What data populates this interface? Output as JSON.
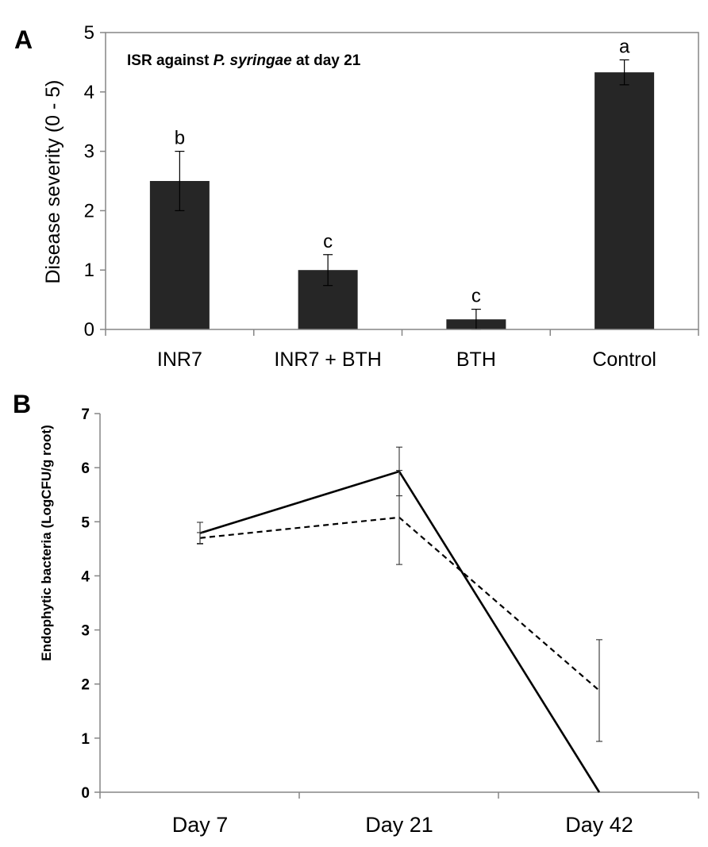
{
  "chart_data": [
    {
      "panel": "A",
      "type": "bar",
      "title_prefix": "ISR against ",
      "title_italic": "P. syringae",
      "title_suffix": " at day 21",
      "xlabel": "",
      "ylabel": "Disease severity (0 - 5)",
      "ylim": [
        0,
        5
      ],
      "yticks": [
        "0",
        "1",
        "2",
        "3",
        "4",
        "5"
      ],
      "categories": [
        "INR7",
        "INR7 + BTH",
        "BTH",
        "Control"
      ],
      "values": [
        2.5,
        1.0,
        0.17,
        4.33
      ],
      "errors": [
        0.5,
        0.26,
        0.17,
        0.21
      ],
      "significance": [
        "b",
        "c",
        "c",
        "a"
      ],
      "bar_color": "#262626",
      "legend": "none"
    },
    {
      "panel": "B",
      "type": "line",
      "xlabel": "",
      "ylabel": "Endophytic bacteria (LogCFU/g root)",
      "ylim": [
        0,
        7
      ],
      "yticks": [
        "0",
        "1",
        "2",
        "3",
        "4",
        "5",
        "6",
        "7"
      ],
      "categories": [
        "Day 7",
        "Day 21",
        "Day 42"
      ],
      "series": [
        {
          "name": "solid",
          "style": "solid",
          "values": [
            4.79,
            5.93,
            0.0
          ],
          "errors": [
            0.2,
            0.45,
            0
          ]
        },
        {
          "name": "dashed",
          "style": "dashed",
          "values": [
            4.7,
            5.08,
            1.88
          ],
          "errors": [
            0.1,
            0.87,
            0.94
          ]
        }
      ],
      "line_color": "#000000",
      "legend": "none"
    }
  ]
}
